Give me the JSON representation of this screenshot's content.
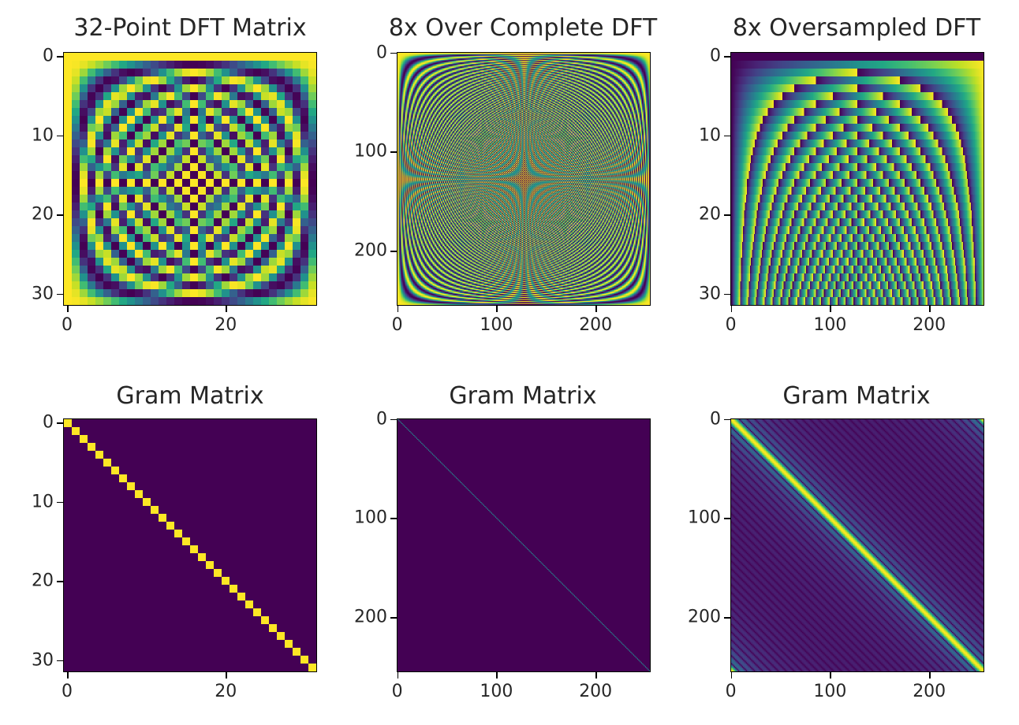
{
  "chart_data": [
    {
      "type": "heatmap",
      "title": "32-Point DFT Matrix",
      "kind": "dft",
      "n_rows": 32,
      "n_cols": 32,
      "xlim": [
        0,
        32
      ],
      "ylim": [
        0,
        32
      ],
      "xticks": [
        0,
        20
      ],
      "yticks": [
        0,
        10,
        20,
        30
      ],
      "xtick_labels": [
        "0",
        "20"
      ],
      "ytick_labels": [
        "0",
        "10",
        "20",
        "30"
      ],
      "colormap": "viridis"
    },
    {
      "type": "heatmap",
      "title": "8x Over Complete DFT",
      "kind": "dft_overcomplete",
      "n_rows": 256,
      "n_cols": 256,
      "xlim": [
        0,
        256
      ],
      "ylim": [
        0,
        256
      ],
      "xticks": [
        0,
        100,
        200
      ],
      "yticks": [
        0,
        100,
        200
      ],
      "xtick_labels": [
        "0",
        "100",
        "200"
      ],
      "ytick_labels": [
        "0",
        "100",
        "200"
      ],
      "colormap": "viridis"
    },
    {
      "type": "heatmap",
      "title": "8x Oversampled DFT",
      "kind": "dft_oversampled",
      "n_rows": 32,
      "n_cols": 256,
      "xlim": [
        0,
        256
      ],
      "ylim": [
        0,
        32
      ],
      "xticks": [
        0,
        100,
        200
      ],
      "yticks": [
        0,
        10,
        20,
        30
      ],
      "xtick_labels": [
        "0",
        "100",
        "200"
      ],
      "ytick_labels": [
        "0",
        "10",
        "20",
        "30"
      ],
      "colormap": "viridis"
    },
    {
      "type": "heatmap",
      "title": "Gram Matrix",
      "kind": "gram_identity",
      "n_rows": 32,
      "n_cols": 32,
      "xlim": [
        0,
        32
      ],
      "ylim": [
        0,
        32
      ],
      "xticks": [
        0,
        20
      ],
      "yticks": [
        0,
        10,
        20,
        30
      ],
      "xtick_labels": [
        "0",
        "20"
      ],
      "ytick_labels": [
        "0",
        "10",
        "20",
        "30"
      ],
      "colormap": "viridis"
    },
    {
      "type": "heatmap",
      "title": "Gram Matrix",
      "kind": "gram_overcomplete",
      "n_rows": 256,
      "n_cols": 256,
      "xlim": [
        0,
        256
      ],
      "ylim": [
        0,
        256
      ],
      "xticks": [
        0,
        100,
        200
      ],
      "yticks": [
        0,
        100,
        200
      ],
      "xtick_labels": [
        "0",
        "100",
        "200"
      ],
      "ytick_labels": [
        "0",
        "100",
        "200"
      ],
      "colormap": "viridis"
    },
    {
      "type": "heatmap",
      "title": "Gram Matrix",
      "kind": "gram_oversampled",
      "n_rows": 256,
      "n_cols": 256,
      "xlim": [
        0,
        256
      ],
      "ylim": [
        0,
        256
      ],
      "xticks": [
        0,
        100,
        200
      ],
      "yticks": [
        0,
        100,
        200
      ],
      "xtick_labels": [
        "0",
        "100",
        "200"
      ],
      "ytick_labels": [
        "0",
        "100",
        "200"
      ],
      "colormap": "viridis"
    }
  ]
}
